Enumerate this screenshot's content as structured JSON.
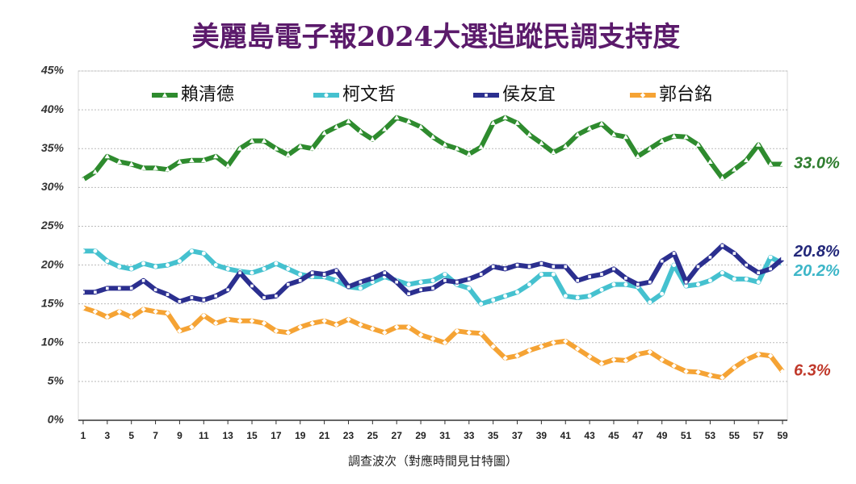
{
  "chart_data": {
    "type": "line",
    "title": "美麗島電子報2024大選追蹤民調支持度",
    "x_label": "調查波次（對應時間見甘特圖）",
    "x": [
      1,
      2,
      3,
      4,
      5,
      6,
      7,
      8,
      9,
      10,
      11,
      12,
      13,
      14,
      15,
      16,
      17,
      18,
      19,
      20,
      21,
      22,
      23,
      24,
      25,
      26,
      27,
      28,
      29,
      30,
      31,
      32,
      33,
      34,
      35,
      36,
      37,
      38,
      39,
      40,
      41,
      42,
      43,
      44,
      45,
      46,
      47,
      48,
      49,
      50,
      51,
      52,
      53,
      54,
      55,
      56,
      57,
      58,
      59
    ],
    "xlim": [
      0.6,
      59.4
    ],
    "xticks": [
      1,
      3,
      5,
      7,
      9,
      11,
      13,
      15,
      17,
      19,
      21,
      23,
      25,
      27,
      29,
      31,
      33,
      35,
      37,
      39,
      41,
      43,
      45,
      47,
      49,
      51,
      53,
      55,
      57,
      59
    ],
    "ylim": [
      0,
      45
    ],
    "yticks": [
      {
        "value": 0,
        "label": "0%"
      },
      {
        "value": 5,
        "label": "5%"
      },
      {
        "value": 10,
        "label": "10%"
      },
      {
        "value": 15,
        "label": "15%"
      },
      {
        "value": 20,
        "label": "20%"
      },
      {
        "value": 25,
        "label": "25%"
      },
      {
        "value": 30,
        "label": "30%"
      },
      {
        "value": 35,
        "label": "35%"
      },
      {
        "value": 40,
        "label": "40%"
      },
      {
        "value": 45,
        "label": "45%"
      }
    ],
    "grid": true,
    "legend": "top",
    "series": [
      {
        "name": "賴清德",
        "color": "#2e8b2e",
        "label_color": "#2e7d2e",
        "marker": "triangle",
        "values": [
          31,
          32,
          34,
          33.3,
          33,
          32.5,
          32.5,
          32.3,
          33.3,
          33.5,
          33.5,
          34,
          32.8,
          35,
          36,
          36,
          35,
          34.2,
          35.3,
          35,
          37,
          37.8,
          38.5,
          37.2,
          36.2,
          37.5,
          39,
          38.5,
          37.8,
          36.5,
          35.5,
          35,
          34.3,
          35.2,
          38.3,
          39,
          38.3,
          36.8,
          35.7,
          34.5,
          35.3,
          36.8,
          37.6,
          38.2,
          36.8,
          36.5,
          34,
          35,
          36,
          36.6,
          36.5,
          35.5,
          33.3,
          31.2,
          32.3,
          33.5,
          35.5,
          33,
          33
        ],
        "value_labels": [
          null,
          null,
          null,
          null,
          null,
          null,
          null,
          null,
          null,
          null,
          null,
          null,
          null,
          null,
          null,
          null,
          null,
          null,
          null,
          null,
          null,
          null,
          null,
          null,
          null,
          null,
          null,
          null,
          null,
          null,
          null,
          null,
          null,
          null,
          null,
          null,
          null,
          null,
          null,
          null,
          null,
          null,
          null,
          null,
          null,
          null,
          null,
          null,
          null,
          null,
          null,
          null,
          null,
          null,
          null,
          null,
          null,
          null,
          "33.0%"
        ]
      },
      {
        "name": "柯文哲",
        "color": "#45c1cf",
        "label_color": "#3db6c8",
        "marker": "circle",
        "values": [
          21.8,
          21.8,
          20.5,
          19.8,
          19.5,
          20.2,
          19.8,
          20,
          20.5,
          21.8,
          21.5,
          20,
          19.5,
          19.2,
          19,
          19.5,
          20.2,
          19.5,
          18.8,
          18.5,
          18.5,
          18,
          17.2,
          17,
          17.8,
          18.5,
          18,
          17.5,
          17.8,
          18,
          18.8,
          17.5,
          17,
          15,
          15.5,
          16,
          16.5,
          17.5,
          18.8,
          18.8,
          16,
          15.8,
          16,
          16.8,
          17.5,
          17.5,
          17.2,
          15.2,
          16.3,
          20,
          17.3,
          17.5,
          18,
          19,
          18.2,
          18.2,
          17.8,
          21,
          20.2
        ],
        "value_labels": [
          null,
          null,
          null,
          null,
          null,
          null,
          null,
          null,
          null,
          null,
          null,
          null,
          null,
          null,
          null,
          null,
          null,
          null,
          null,
          null,
          null,
          null,
          null,
          null,
          null,
          null,
          null,
          null,
          null,
          null,
          null,
          null,
          null,
          null,
          null,
          null,
          null,
          null,
          null,
          null,
          null,
          null,
          null,
          null,
          null,
          null,
          null,
          null,
          null,
          null,
          null,
          null,
          null,
          null,
          null,
          null,
          null,
          null,
          "20.2%"
        ]
      },
      {
        "name": "侯友宜",
        "color": "#2b2f8f",
        "label_color": "#23287a",
        "marker": "square",
        "values": [
          16.5,
          16.5,
          17,
          17,
          17,
          18,
          16.8,
          16.2,
          15.3,
          15.8,
          15.5,
          16,
          16.8,
          19,
          17.3,
          15.8,
          16,
          17.5,
          18,
          19,
          18.8,
          19.3,
          17.2,
          17.8,
          18.3,
          19,
          17.8,
          16.3,
          16.8,
          17,
          18,
          17.8,
          18.2,
          18.8,
          19.8,
          19.5,
          20,
          19.8,
          20.2,
          19.8,
          19.8,
          18,
          18.5,
          18.8,
          19.5,
          18.3,
          17.5,
          17.8,
          20.5,
          21.5,
          17.8,
          19.8,
          21,
          22.5,
          21.5,
          20,
          19,
          19.5,
          20.8
        ],
        "value_labels": [
          null,
          null,
          null,
          null,
          null,
          null,
          null,
          null,
          null,
          null,
          null,
          null,
          null,
          null,
          null,
          null,
          null,
          null,
          null,
          null,
          null,
          null,
          null,
          null,
          null,
          null,
          null,
          null,
          null,
          null,
          null,
          null,
          null,
          null,
          null,
          null,
          null,
          null,
          null,
          null,
          null,
          null,
          null,
          null,
          null,
          null,
          null,
          null,
          null,
          null,
          null,
          null,
          null,
          null,
          null,
          null,
          null,
          null,
          "20.8%"
        ]
      },
      {
        "name": "郭台銘",
        "color": "#f5a334",
        "label_color": "#c0392b",
        "marker": "diamond",
        "values": [
          14.5,
          14,
          13.3,
          14,
          13.3,
          14.3,
          14,
          13.8,
          11.5,
          12,
          13.5,
          12.5,
          13,
          12.8,
          12.8,
          12.5,
          11.5,
          11.3,
          12,
          12.5,
          12.8,
          12.3,
          13,
          12.3,
          11.8,
          11.3,
          12,
          12,
          11,
          10.5,
          10,
          11.5,
          11.3,
          11.2,
          9.5,
          8,
          8.3,
          9,
          9.5,
          10,
          10.2,
          9.2,
          8.2,
          7.3,
          7.8,
          7.7,
          8.5,
          8.8,
          7.8,
          7,
          6.3,
          6.2,
          5.8,
          5.5,
          6.8,
          7.8,
          8.5,
          8.3,
          6.3
        ],
        "value_labels": [
          null,
          null,
          null,
          null,
          null,
          null,
          null,
          null,
          null,
          null,
          null,
          null,
          null,
          null,
          null,
          null,
          null,
          null,
          null,
          null,
          null,
          null,
          null,
          null,
          null,
          null,
          null,
          null,
          null,
          null,
          null,
          null,
          null,
          null,
          null,
          null,
          null,
          null,
          null,
          null,
          null,
          null,
          null,
          null,
          null,
          null,
          null,
          null,
          null,
          null,
          null,
          null,
          null,
          null,
          null,
          null,
          null,
          null,
          "6.3%"
        ]
      }
    ]
  }
}
